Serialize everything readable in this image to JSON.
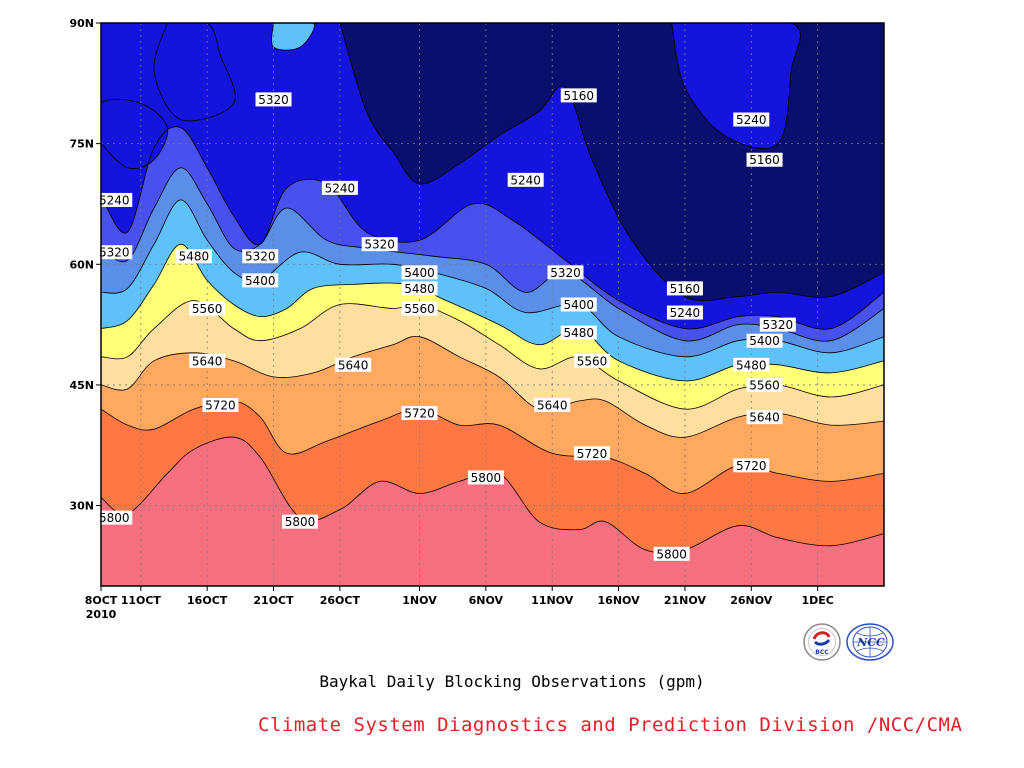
{
  "chart_data": {
    "type": "contour",
    "caption": "Baykal Daily Blocking Observations (gpm)",
    "x_axis": {
      "ticks": [
        "8OCT",
        "11OCT",
        "16OCT",
        "21OCT",
        "26OCT",
        "1NOV",
        "6NOV",
        "11NOV",
        "16NOV",
        "21NOV",
        "26NOV",
        "1DEC"
      ],
      "start_year": "2010",
      "range": [
        "2010-10-08",
        "2010-12-06"
      ]
    },
    "y_axis": {
      "ticks": [
        "30N",
        "45N",
        "60N",
        "75N",
        "90N"
      ],
      "range": [
        20,
        90
      ]
    },
    "grid": true,
    "levels": [
      5160,
      5240,
      5320,
      5400,
      5480,
      5560,
      5640,
      5720,
      5800
    ],
    "level_colors": [
      "#0a0f6e",
      "#1414dc",
      "#4850ee",
      "#5a8ee8",
      "#5ec1fa",
      "#ffff78",
      "#ffdfa0",
      "#ffa860",
      "#ff7844",
      "#f67080"
    ],
    "contours": [
      {
        "level": 5800,
        "points": [
          [
            "2010-10-08",
            31
          ],
          [
            "2010-10-10",
            29
          ],
          [
            "2010-10-13",
            34
          ],
          [
            "2010-10-15",
            37
          ],
          [
            "2010-10-18",
            38.5
          ],
          [
            "2010-10-20",
            36
          ],
          [
            "2010-10-23",
            28.5
          ],
          [
            "2010-10-26",
            29.5
          ],
          [
            "2010-10-29",
            33
          ],
          [
            "2010-11-01",
            31.5
          ],
          [
            "2010-11-04",
            33
          ],
          [
            "2010-11-07",
            34
          ],
          [
            "2010-11-10",
            28
          ],
          [
            "2010-11-13",
            27
          ],
          [
            "2010-11-15",
            28
          ],
          [
            "2010-11-18",
            24.5
          ],
          [
            "2010-11-21",
            24.5
          ],
          [
            "2010-11-25",
            27.5
          ],
          [
            "2010-11-28",
            26
          ],
          [
            "2010-12-02",
            25
          ],
          [
            "2010-12-06",
            26.5
          ]
        ]
      },
      {
        "level": 5720,
        "points": [
          [
            "2010-10-08",
            42
          ],
          [
            "2010-10-10",
            40
          ],
          [
            "2010-10-12",
            39.5
          ],
          [
            "2010-10-15",
            42
          ],
          [
            "2010-10-18",
            43
          ],
          [
            "2010-10-20",
            41
          ],
          [
            "2010-10-22",
            36.5
          ],
          [
            "2010-10-25",
            38
          ],
          [
            "2010-10-29",
            40.5
          ],
          [
            "2010-11-01",
            42
          ],
          [
            "2010-11-04",
            40
          ],
          [
            "2010-11-07",
            40
          ],
          [
            "2010-11-11",
            36.5
          ],
          [
            "2010-11-15",
            36
          ],
          [
            "2010-11-18",
            34
          ],
          [
            "2010-11-21",
            31.5
          ],
          [
            "2010-11-25",
            35
          ],
          [
            "2010-11-28",
            34
          ],
          [
            "2010-12-02",
            33
          ],
          [
            "2010-12-06",
            34
          ]
        ]
      },
      {
        "level": 5640,
        "points": [
          [
            "2010-10-08",
            45
          ],
          [
            "2010-10-10",
            44.5
          ],
          [
            "2010-10-12",
            48
          ],
          [
            "2010-10-15",
            49
          ],
          [
            "2010-10-18",
            48
          ],
          [
            "2010-10-21",
            46
          ],
          [
            "2010-10-24",
            46.5
          ],
          [
            "2010-10-27",
            48.5
          ],
          [
            "2010-10-30",
            50
          ],
          [
            "2010-11-01",
            51
          ],
          [
            "2010-11-04",
            48.5
          ],
          [
            "2010-11-07",
            46
          ],
          [
            "2010-11-10",
            42
          ],
          [
            "2010-11-13",
            43
          ],
          [
            "2010-11-15",
            43
          ],
          [
            "2010-11-18",
            40
          ],
          [
            "2010-11-21",
            38.5
          ],
          [
            "2010-11-25",
            41
          ],
          [
            "2010-11-28",
            41.5
          ],
          [
            "2010-12-02",
            40
          ],
          [
            "2010-12-06",
            40.5
          ]
        ]
      },
      {
        "level": 5560,
        "points": [
          [
            "2010-10-08",
            48.5
          ],
          [
            "2010-10-10",
            48.5
          ],
          [
            "2010-10-12",
            52
          ],
          [
            "2010-10-15",
            55.5
          ],
          [
            "2010-10-18",
            52
          ],
          [
            "2010-10-20",
            50.5
          ],
          [
            "2010-10-23",
            52
          ],
          [
            "2010-10-26",
            55
          ],
          [
            "2010-10-30",
            54.5
          ],
          [
            "2010-11-01",
            55
          ],
          [
            "2010-11-04",
            53
          ],
          [
            "2010-11-07",
            50
          ],
          [
            "2010-11-10",
            47
          ],
          [
            "2010-11-13",
            48.5
          ],
          [
            "2010-11-16",
            45.5
          ],
          [
            "2010-11-21",
            42
          ],
          [
            "2010-11-25",
            44.5
          ],
          [
            "2010-11-28",
            45
          ],
          [
            "2010-12-02",
            43.5
          ],
          [
            "2010-12-06",
            45
          ]
        ]
      },
      {
        "level": 5480,
        "points": [
          [
            "2010-10-08",
            52
          ],
          [
            "2010-10-10",
            53
          ],
          [
            "2010-10-12",
            57.5
          ],
          [
            "2010-10-14",
            62.5
          ],
          [
            "2010-10-16",
            58
          ],
          [
            "2010-10-18",
            55
          ],
          [
            "2010-10-20",
            53.5
          ],
          [
            "2010-10-22",
            54.5
          ],
          [
            "2010-10-24",
            57
          ],
          [
            "2010-10-27",
            57.5
          ],
          [
            "2010-10-31",
            57.5
          ],
          [
            "2010-11-03",
            55.5
          ],
          [
            "2010-11-07",
            52.5
          ],
          [
            "2010-11-10",
            50
          ],
          [
            "2010-11-13",
            52
          ],
          [
            "2010-11-16",
            48
          ],
          [
            "2010-11-21",
            45.5
          ],
          [
            "2010-11-25",
            47.5
          ],
          [
            "2010-11-28",
            47.5
          ],
          [
            "2010-12-02",
            46.5
          ],
          [
            "2010-12-06",
            48
          ]
        ]
      },
      {
        "level": 5400,
        "points": [
          [
            "2010-10-08",
            56.5
          ],
          [
            "2010-10-10",
            57
          ],
          [
            "2010-10-12",
            62.5
          ],
          [
            "2010-10-14",
            68
          ],
          [
            "2010-10-16",
            63
          ],
          [
            "2010-10-18",
            59
          ],
          [
            "2010-10-20",
            58
          ],
          [
            "2010-10-23",
            61.5
          ],
          [
            "2010-10-26",
            60
          ],
          [
            "2010-10-30",
            60
          ],
          [
            "2010-11-02",
            59
          ],
          [
            "2010-11-06",
            57
          ],
          [
            "2010-11-09",
            54
          ],
          [
            "2010-11-13",
            55
          ],
          [
            "2010-11-16",
            51
          ],
          [
            "2010-11-21",
            48.5
          ],
          [
            "2010-11-25",
            50.5
          ],
          [
            "2010-11-28",
            50.5
          ],
          [
            "2010-12-02",
            49
          ],
          [
            "2010-12-06",
            51
          ]
        ]
      },
      {
        "level": 5320,
        "points": [
          [
            "2010-10-08",
            62
          ],
          [
            "2010-10-10",
            60.5
          ],
          [
            "2010-10-12",
            67
          ],
          [
            "2010-10-14",
            72
          ],
          [
            "2010-10-16",
            67.5
          ],
          [
            "2010-10-18",
            62
          ],
          [
            "2010-10-20",
            62.5
          ],
          [
            "2010-10-22",
            67
          ],
          [
            "2010-10-25",
            63
          ],
          [
            "2010-10-28",
            62
          ],
          [
            "2010-11-02",
            61
          ],
          [
            "2010-11-06",
            60
          ],
          [
            "2010-11-09",
            56.5
          ],
          [
            "2010-11-12",
            59
          ],
          [
            "2010-11-16",
            54.5
          ],
          [
            "2010-11-21",
            50.5
          ],
          [
            "2010-11-25",
            52.5
          ],
          [
            "2010-11-28",
            52
          ],
          [
            "2010-12-02",
            50.5
          ],
          [
            "2010-12-06",
            54.5
          ]
        ]
      },
      {
        "level": 5240,
        "points": [
          [
            "2010-10-08",
            68.5
          ],
          [
            "2010-10-10",
            64
          ],
          [
            "2010-10-12",
            74.5
          ],
          [
            "2010-10-14",
            77
          ],
          [
            "2010-10-16",
            72
          ],
          [
            "2010-10-18",
            66
          ],
          [
            "2010-10-20",
            62.5
          ],
          [
            "2010-10-22",
            69.5
          ],
          [
            "2010-10-25",
            70
          ],
          [
            "2010-10-28",
            64
          ],
          [
            "2010-11-01",
            63
          ],
          [
            "2010-11-05",
            67.5
          ],
          [
            "2010-11-08",
            65.5
          ],
          [
            "2010-11-12",
            60.5
          ],
          [
            "2010-11-16",
            55.5
          ],
          [
            "2010-11-21",
            52
          ],
          [
            "2010-11-25",
            53.5
          ],
          [
            "2010-11-28",
            53.5
          ],
          [
            "2010-12-02",
            52
          ],
          [
            "2010-12-06",
            56.5
          ]
        ]
      },
      {
        "level": 5160,
        "points": [
          [
            "2010-10-26",
            90
          ],
          [
            "2010-10-28",
            79
          ],
          [
            "2010-10-30",
            74
          ],
          [
            "2010-11-01",
            70
          ],
          [
            "2010-11-04",
            72.5
          ],
          [
            "2010-11-07",
            76
          ],
          [
            "2010-11-10",
            79
          ],
          [
            "2010-11-12",
            82
          ],
          [
            "2010-11-14",
            73
          ],
          [
            "2010-11-17",
            63
          ],
          [
            "2010-11-21",
            56
          ],
          [
            "2010-11-25",
            56
          ],
          [
            "2010-11-28",
            56.5
          ],
          [
            "2010-12-02",
            56
          ],
          [
            "2010-12-06",
            59
          ]
        ]
      }
    ],
    "labels": [
      {
        "text": "5800",
        "x": "2010-10-09",
        "y": 28.5
      },
      {
        "text": "5800",
        "x": "2010-10-23",
        "y": 28
      },
      {
        "text": "5800",
        "x": "2010-11-06",
        "y": 33.5
      },
      {
        "text": "5800",
        "x": "2010-11-20",
        "y": 24
      },
      {
        "text": "5720",
        "x": "2010-10-17",
        "y": 42.5
      },
      {
        "text": "5720",
        "x": "2010-11-01",
        "y": 41.5
      },
      {
        "text": "5720",
        "x": "2010-11-14",
        "y": 36.5
      },
      {
        "text": "5720",
        "x": "2010-11-26",
        "y": 35
      },
      {
        "text": "5640",
        "x": "2010-10-16",
        "y": 48
      },
      {
        "text": "5640",
        "x": "2010-10-27",
        "y": 47.5
      },
      {
        "text": "5640",
        "x": "2010-11-11",
        "y": 42.5
      },
      {
        "text": "5640",
        "x": "2010-11-27",
        "y": 41
      },
      {
        "text": "5560",
        "x": "2010-10-16",
        "y": 54.5
      },
      {
        "text": "5560",
        "x": "2010-11-01",
        "y": 54.5
      },
      {
        "text": "5560",
        "x": "2010-11-14",
        "y": 48
      },
      {
        "text": "5560",
        "x": "2010-11-27",
        "y": 45
      },
      {
        "text": "5480",
        "x": "2010-10-15",
        "y": 61
      },
      {
        "text": "5480",
        "x": "2010-11-01",
        "y": 57
      },
      {
        "text": "5480",
        "x": "2010-11-13",
        "y": 51.5
      },
      {
        "text": "5480",
        "x": "2010-11-26",
        "y": 47.5
      },
      {
        "text": "5400",
        "x": "2010-10-20",
        "y": 58
      },
      {
        "text": "5400",
        "x": "2010-11-01",
        "y": 59
      },
      {
        "text": "5400",
        "x": "2010-11-13",
        "y": 55
      },
      {
        "text": "5400",
        "x": "2010-11-27",
        "y": 50.5
      },
      {
        "text": "5320",
        "x": "2010-10-09",
        "y": 61.5
      },
      {
        "text": "5320",
        "x": "2010-10-20",
        "y": 61
      },
      {
        "text": "5320",
        "x": "2010-10-29",
        "y": 62.5
      },
      {
        "text": "5320",
        "x": "2010-11-12",
        "y": 59
      },
      {
        "text": "5320",
        "x": "2010-11-28",
        "y": 52.5
      },
      {
        "text": "5320",
        "x": "2010-10-21",
        "y": 80.5
      },
      {
        "text": "5240",
        "x": "2010-10-09",
        "y": 68
      },
      {
        "text": "5240",
        "x": "2010-10-26",
        "y": 69.5
      },
      {
        "text": "5240",
        "x": "2010-11-09",
        "y": 70.5
      },
      {
        "text": "5240",
        "x": "2010-11-21",
        "y": 54
      },
      {
        "text": "5240",
        "x": "2010-11-26",
        "y": 78
      },
      {
        "text": "5160",
        "x": "2010-11-13",
        "y": 81
      },
      {
        "text": "5160",
        "x": "2010-11-21",
        "y": 57
      },
      {
        "text": "5160",
        "x": "2010-11-27",
        "y": 73
      }
    ]
  },
  "credit": "Climate System Diagnostics and Prediction Division /NCC/CMA",
  "logos": [
    {
      "icon": "bcc-logo-icon",
      "text": "BCC"
    },
    {
      "icon": "ncc-logo-icon",
      "text": "NCC"
    }
  ]
}
